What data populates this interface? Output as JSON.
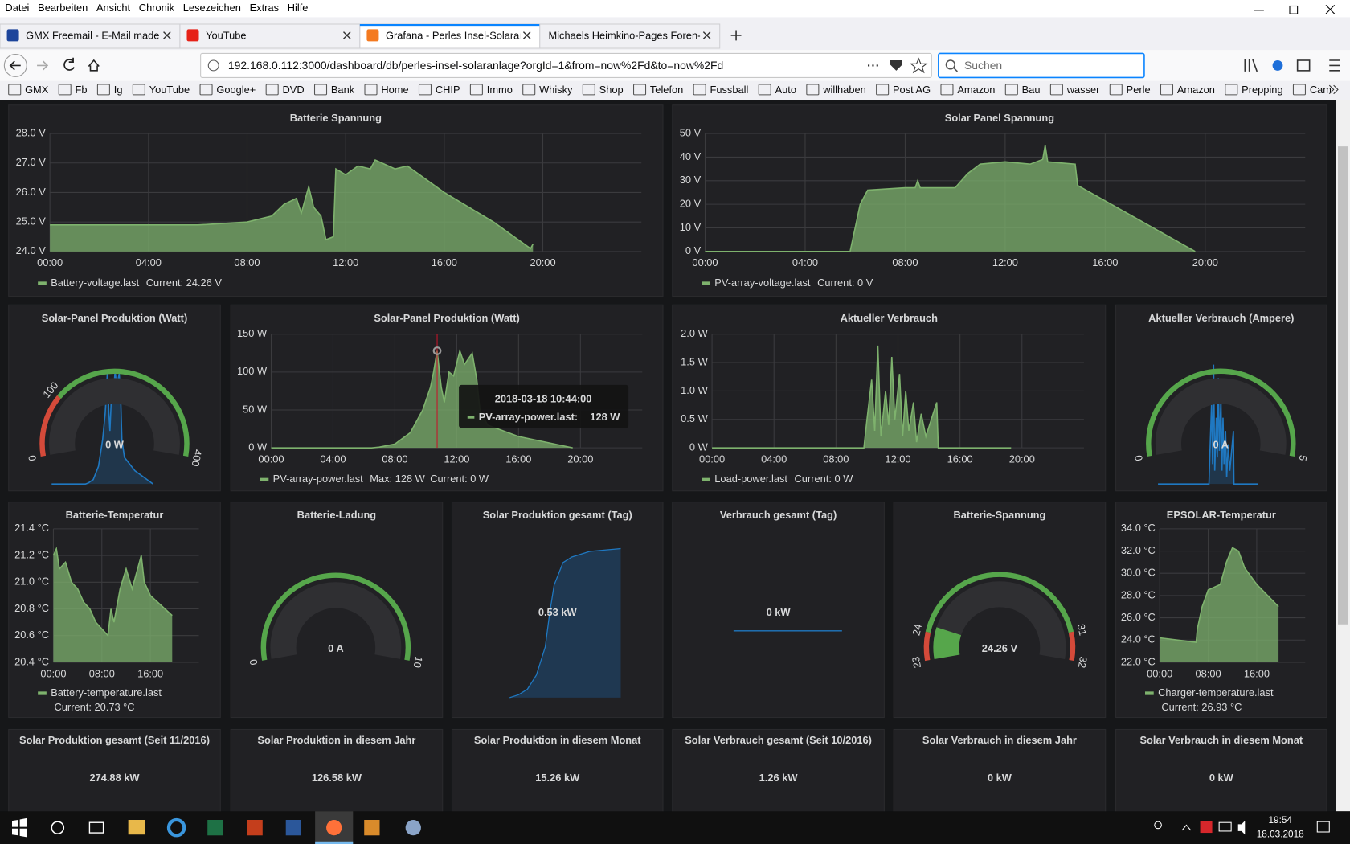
{
  "menu": [
    "Datei",
    "Bearbeiten",
    "Ansicht",
    "Chronik",
    "Lesezeichen",
    "Extras",
    "Hilfe"
  ],
  "tabs": [
    {
      "title": "GMX Freemail - E-Mail made in"
    },
    {
      "title": "YouTube"
    },
    {
      "title": "Grafana - Perles Insel-Solaranla"
    },
    {
      "title": "Michaels Heimkino-Pages Foren-B"
    }
  ],
  "active_tab": 2,
  "url": "192.168.0.112:3000/dashboard/db/perles-insel-solaranlage?orgId=1&from=now%2Fd&to=now%2Fd",
  "search_placeholder": "Suchen",
  "bookmarks": [
    "GMX",
    "Fb",
    "Ig",
    "YouTube",
    "Google+",
    "DVD",
    "Bank",
    "Home",
    "CHIP",
    "Immo",
    "Whisky",
    "Shop",
    "Telefon",
    "Fussball",
    "Auto",
    "willhaben",
    "Post AG",
    "Amazon",
    "Bau",
    "wasser",
    "Perle",
    "Amazon",
    "Prepping",
    "Cam"
  ],
  "panels": [
    {
      "type": "line",
      "title": "Batterie Spannung",
      "color": "#7eb26d",
      "xlim": [
        0,
        24
      ],
      "ylim": [
        24,
        28
      ],
      "xticks": [
        {
          "value": 0,
          "label": "00:00"
        },
        {
          "value": 4,
          "label": "04:00"
        },
        {
          "value": 8,
          "label": "08:00"
        },
        {
          "value": 12,
          "label": "12:00"
        },
        {
          "value": 16,
          "label": "16:00"
        },
        {
          "value": 20,
          "label": "20:00"
        }
      ],
      "yticks": [
        {
          "value": 24,
          "label": "24.0 V"
        },
        {
          "value": 25,
          "label": "25.0 V"
        },
        {
          "value": 26,
          "label": "26.0 V"
        },
        {
          "value": 27,
          "label": "27.0 V"
        },
        {
          "value": 28,
          "label": "28.0 V"
        }
      ],
      "x": [
        0,
        2,
        4,
        6,
        7,
        8,
        9,
        9.5,
        10,
        10.2,
        10.5,
        10.7,
        11,
        11.2,
        11.5,
        11.6,
        12,
        12.5,
        13,
        13.2,
        14,
        14.5,
        16,
        18,
        19.5,
        19.6
      ],
      "values": [
        24.9,
        24.9,
        24.9,
        24.9,
        24.95,
        25.0,
        25.2,
        25.6,
        25.8,
        25.3,
        26.2,
        25.5,
        25.2,
        24.4,
        24.5,
        26.8,
        26.6,
        26.9,
        26.8,
        27.1,
        26.8,
        26.9,
        26.0,
        25.0,
        24.1,
        24.25
      ],
      "legend": {
        "name": "Battery-voltage.last",
        "items": [
          "Current: 24.26 V"
        ]
      }
    },
    {
      "type": "line",
      "title": "Solar Panel Spannung",
      "color": "#7eb26d",
      "xlim": [
        0,
        24
      ],
      "ylim": [
        0,
        50
      ],
      "xticks": [
        {
          "value": 0,
          "label": "00:00"
        },
        {
          "value": 4,
          "label": "04:00"
        },
        {
          "value": 8,
          "label": "08:00"
        },
        {
          "value": 12,
          "label": "12:00"
        },
        {
          "value": 16,
          "label": "16:00"
        },
        {
          "value": 20,
          "label": "20:00"
        }
      ],
      "yticks": [
        {
          "value": 0,
          "label": "0 V"
        },
        {
          "value": 10,
          "label": "10 V"
        },
        {
          "value": 20,
          "label": "20 V"
        },
        {
          "value": 30,
          "label": "30 V"
        },
        {
          "value": 40,
          "label": "40 V"
        },
        {
          "value": 50,
          "label": "50 V"
        }
      ],
      "x": [
        0,
        5.8,
        6.2,
        6.5,
        8,
        8.4,
        8.5,
        8.6,
        10,
        10.5,
        11,
        12,
        13,
        13.5,
        13.6,
        13.7,
        14.8,
        14.9,
        19.6
      ],
      "values": [
        0,
        0,
        20,
        26,
        27,
        27,
        30,
        27,
        27,
        33,
        37,
        38,
        37,
        39,
        45,
        38,
        37,
        28,
        0
      ],
      "legend": {
        "name": "PV-array-voltage.last",
        "items": [
          "Current: 0 V"
        ]
      }
    },
    {
      "type": "gauge",
      "title": "Solar-Panel Produktion (Watt)",
      "scale": [
        0,
        400
      ],
      "thresholds": [
        100
      ],
      "colors": [
        "#d44a3a",
        "#56a64b"
      ],
      "value": 0,
      "value_label": "0 W"
    },
    {
      "type": "line",
      "title": "Solar-Panel Produktion (Watt)",
      "color": "#7eb26d",
      "xlim": [
        0,
        24
      ],
      "ylim": [
        0,
        150
      ],
      "xticks": [
        {
          "value": 0,
          "label": "00:00"
        },
        {
          "value": 4,
          "label": "04:00"
        },
        {
          "value": 8,
          "label": "08:00"
        },
        {
          "value": 12,
          "label": "12:00"
        },
        {
          "value": 16,
          "label": "16:00"
        },
        {
          "value": 20,
          "label": "20:00"
        }
      ],
      "yticks": [
        {
          "value": 0,
          "label": "0 W"
        },
        {
          "value": 50,
          "label": "50 W"
        },
        {
          "value": 100,
          "label": "100 W"
        },
        {
          "value": 150,
          "label": "150 W"
        }
      ],
      "x": [
        0,
        6.5,
        7,
        8,
        9,
        9.8,
        10.3,
        10.5,
        10.73,
        11,
        11.2,
        11.5,
        11.8,
        12.2,
        12.5,
        13,
        13.3,
        13.5,
        14,
        16,
        19.5
      ],
      "values": [
        0,
        0,
        1,
        5,
        20,
        50,
        80,
        100,
        128,
        80,
        60,
        100,
        95,
        128,
        110,
        125,
        90,
        50,
        30,
        15,
        0
      ],
      "legend": {
        "name": "PV-array-power.last",
        "items": [
          "Max: 128 W",
          "Current: 0 W"
        ]
      },
      "tooltip": {
        "time": "2018-03-18 10:44:00",
        "name": "PV-array-power.last:",
        "value": 128,
        "value_label": "128 W"
      }
    },
    {
      "type": "line",
      "title": "Aktueller Verbrauch",
      "color": "#7eb26d",
      "xlim": [
        0,
        24
      ],
      "ylim": [
        0,
        2
      ],
      "xticks": [
        {
          "value": 0,
          "label": "00:00"
        },
        {
          "value": 4,
          "label": "04:00"
        },
        {
          "value": 8,
          "label": "08:00"
        },
        {
          "value": 12,
          "label": "12:00"
        },
        {
          "value": 16,
          "label": "16:00"
        },
        {
          "value": 20,
          "label": "20:00"
        }
      ],
      "yticks": [
        {
          "value": 0,
          "label": "0 W"
        },
        {
          "value": 0.5,
          "label": "0.5 W"
        },
        {
          "value": 1,
          "label": "1.0 W"
        },
        {
          "value": 1.5,
          "label": "1.5 W"
        },
        {
          "value": 2,
          "label": "2.0 W"
        }
      ],
      "x": [
        0,
        9.8,
        10,
        10.3,
        10.5,
        10.7,
        10.9,
        11.2,
        11.4,
        11.6,
        11.8,
        12.1,
        12.3,
        12.5,
        12.7,
        13,
        13.2,
        13.5,
        13.8,
        14.5,
        14.6,
        19.3
      ],
      "values": [
        0,
        0,
        0.5,
        1.2,
        0.3,
        1.8,
        0.2,
        1.0,
        0.4,
        1.6,
        0.5,
        1.3,
        0.2,
        1.0,
        0.3,
        0.8,
        0.1,
        0.6,
        0.2,
        0.8,
        0,
        0
      ],
      "legend": {
        "name": "Load-power.last",
        "items": [
          "Current: 0 W"
        ]
      }
    },
    {
      "type": "gauge",
      "title": "Aktueller Verbrauch (Ampere)",
      "scale": [
        0,
        5
      ],
      "thresholds": [],
      "colors": [
        "#56a64b"
      ],
      "value": 0,
      "value_label": "0 A"
    },
    {
      "type": "line",
      "title": "Batterie-Temperatur",
      "color": "#7eb26d",
      "xlim": [
        0,
        24
      ],
      "ylim": [
        20.4,
        21.4
      ],
      "xticks": [
        {
          "value": 0,
          "label": "00:00"
        },
        {
          "value": 8,
          "label": "08:00"
        },
        {
          "value": 16,
          "label": "16:00"
        }
      ],
      "yticks": [
        {
          "value": 20.4,
          "label": "20.4 °C"
        },
        {
          "value": 20.6,
          "label": "20.6 °C"
        },
        {
          "value": 20.8,
          "label": "20.8 °C"
        },
        {
          "value": 21.0,
          "label": "21.0 °C"
        },
        {
          "value": 21.2,
          "label": "21.2 °C"
        },
        {
          "value": 21.4,
          "label": "21.4 °C"
        }
      ],
      "x": [
        0,
        0.5,
        1,
        2,
        3,
        4,
        5,
        6,
        7,
        8,
        9,
        9.5,
        10,
        11,
        12,
        13,
        14.5,
        15,
        16,
        19.6
      ],
      "values": [
        21.2,
        21.25,
        21.1,
        21.15,
        21.0,
        20.95,
        20.85,
        20.8,
        20.7,
        20.65,
        20.6,
        20.8,
        20.7,
        20.95,
        21.1,
        20.95,
        21.2,
        21.0,
        20.9,
        20.75
      ],
      "legend": {
        "name": "Battery-temperature.last",
        "items": [
          "Current: 20.73 °C"
        ]
      }
    },
    {
      "type": "gauge",
      "title": "Batterie-Ladung",
      "scale": [
        0,
        10
      ],
      "thresholds": [],
      "colors": [
        "#56a64b"
      ],
      "value": 0,
      "value_label": "0 A"
    },
    {
      "type": "stat",
      "title": "Solar Produktion gesamt (Tag)",
      "value": 0.53,
      "value_label": "0.53 kW",
      "spark": {
        "x": [
          7,
          8,
          9,
          10,
          11,
          11.5,
          12,
          13,
          14,
          16,
          19.5
        ],
        "values": [
          0,
          0.01,
          0.03,
          0.08,
          0.18,
          0.3,
          0.4,
          0.48,
          0.5,
          0.52,
          0.53
        ]
      }
    },
    {
      "type": "stat",
      "title": "Verbrauch gesamt (Tag)",
      "value": 0,
      "value_label": "0 kW",
      "spark": {
        "x": [
          0,
          19.5
        ],
        "values": [
          0,
          0
        ]
      }
    },
    {
      "type": "gauge",
      "title": "Batterie-Spannung",
      "scale": [
        23,
        32
      ],
      "thresholds": [
        24,
        31
      ],
      "colors": [
        "#d44a3a",
        "#56a64b",
        "#d44a3a"
      ],
      "value": 24.26,
      "value_label": "24.26 V"
    },
    {
      "type": "line",
      "title": "EPSOLAR-Temperatur",
      "color": "#7eb26d",
      "xlim": [
        0,
        24
      ],
      "ylim": [
        22,
        34
      ],
      "xticks": [
        {
          "value": 0,
          "label": "00:00"
        },
        {
          "value": 8,
          "label": "08:00"
        },
        {
          "value": 16,
          "label": "16:00"
        }
      ],
      "yticks": [
        {
          "value": 22,
          "label": "22.0 °C"
        },
        {
          "value": 24,
          "label": "24.0 °C"
        },
        {
          "value": 26,
          "label": "26.0 °C"
        },
        {
          "value": 28,
          "label": "28.0 °C"
        },
        {
          "value": 30,
          "label": "30.0 °C"
        },
        {
          "value": 32,
          "label": "32.0 °C"
        },
        {
          "value": 34,
          "label": "34.0 °C"
        }
      ],
      "x": [
        0,
        6,
        6.2,
        7,
        8,
        10,
        11,
        12,
        13,
        14,
        16,
        19.6
      ],
      "values": [
        24.2,
        23.8,
        25,
        27,
        28.5,
        29,
        31,
        32.3,
        32,
        30.5,
        29,
        27
      ],
      "legend": {
        "name": "Charger-temperature.last",
        "items": [
          "Current: 26.93 °C"
        ]
      }
    },
    {
      "type": "stat",
      "title": "Solar Produktion gesamt (Seit 11/2016)",
      "value": 274.88,
      "value_label": "274.88 kW"
    },
    {
      "type": "stat",
      "title": "Solar Produktion in diesem Jahr",
      "value": 126.58,
      "value_label": "126.58 kW"
    },
    {
      "type": "stat",
      "title": "Solar Produktion in diesem Monat",
      "value": 15.26,
      "value_label": "15.26 kW"
    },
    {
      "type": "stat",
      "title": "Solar Verbrauch gesamt (Seit 10/2016)",
      "value": 1.26,
      "value_label": "1.26 kW"
    },
    {
      "type": "stat",
      "title": "Solar Verbrauch in diesem Jahr",
      "value": 0,
      "value_label": "0 kW"
    },
    {
      "type": "stat",
      "title": "Solar Verbrauch in diesem Monat",
      "value": 0,
      "value_label": "0 kW"
    }
  ],
  "taskbar": {
    "time": "19:54",
    "date": "18.03.2018"
  }
}
